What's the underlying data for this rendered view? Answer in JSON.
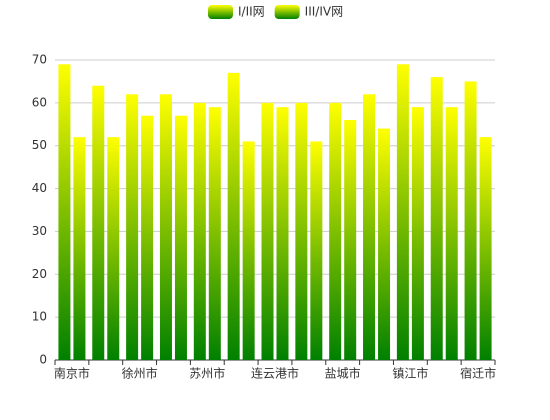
{
  "chart_data": {
    "type": "bar",
    "categories": [
      "南京市",
      null,
      "徐州市",
      null,
      "苏州市",
      null,
      "连云港市",
      null,
      "盐城市",
      null,
      "镇江市",
      null,
      "宿迁市"
    ],
    "series": [
      {
        "name": "I/II网",
        "color": [
          "#ffff00",
          "#008000"
        ],
        "values": [
          69,
          64,
          62,
          62,
          60,
          67,
          60,
          60,
          60,
          62,
          69,
          66,
          65
        ]
      },
      {
        "name": "III/IV网",
        "color": [
          "#ffff00",
          "#008000"
        ],
        "values": [
          52,
          52,
          57,
          57,
          59,
          51,
          59,
          51,
          56,
          54,
          59,
          59,
          52
        ]
      }
    ],
    "ylim": [
      0,
      70
    ],
    "yticks": [
      0,
      10,
      20,
      30,
      40,
      50,
      60,
      70
    ],
    "grid": true,
    "legend": "top"
  }
}
